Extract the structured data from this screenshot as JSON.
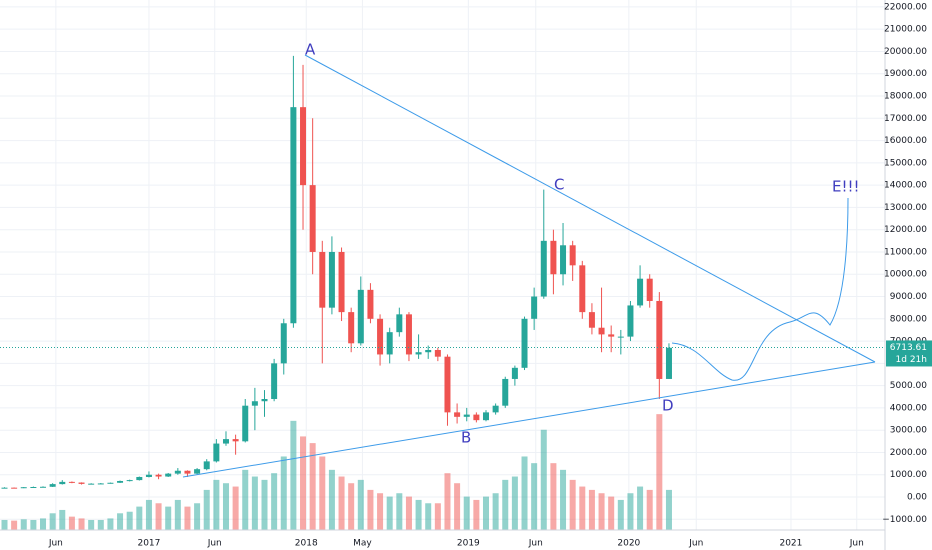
{
  "chart_data": {
    "type": "candlestick",
    "annotations": [
      "A",
      "B",
      "C",
      "D",
      "E!!!"
    ],
    "last_price": 6713.61,
    "countdown": "1d 21h",
    "up_color": "#26a69a",
    "down_color": "#ef5350",
    "grid": true,
    "xlim": [
      2016.072,
      2021.586
    ],
    "xticks": [
      {
        "value": 2016.42,
        "label": "Jun"
      },
      {
        "value": 2017.0,
        "label": "2017"
      },
      {
        "value": 2017.41,
        "label": "Jun"
      },
      {
        "value": 2017.98,
        "label": "2018"
      },
      {
        "value": 2018.33,
        "label": "May"
      },
      {
        "value": 2018.99,
        "label": "2019"
      },
      {
        "value": 2019.41,
        "label": "Jun"
      },
      {
        "value": 2019.99,
        "label": "2020"
      },
      {
        "value": 2020.41,
        "label": "Jun"
      },
      {
        "value": 2021.0,
        "label": "2021"
      },
      {
        "value": 2021.41,
        "label": "Jun"
      }
    ],
    "ylim": [
      -1480,
      22310
    ],
    "yticks": [
      {
        "value": -1000,
        "label": "−1000.00"
      },
      {
        "value": 0,
        "label": "0.00"
      },
      {
        "value": 1000,
        "label": "1000.00"
      },
      {
        "value": 2000,
        "label": "2000.00"
      },
      {
        "value": 3000,
        "label": "3000.00"
      },
      {
        "value": 4000,
        "label": "4000.00"
      },
      {
        "value": 5000,
        "label": "5000.00"
      },
      {
        "value": 6000,
        "label": "6000.00"
      },
      {
        "value": 7000,
        "label": "7000.00"
      },
      {
        "value": 8000,
        "label": "8000.00"
      },
      {
        "value": 9000,
        "label": "9000.00"
      },
      {
        "value": 10000,
        "label": "10000.00"
      },
      {
        "value": 11000,
        "label": "11000.00"
      },
      {
        "value": 12000,
        "label": "12000.00"
      },
      {
        "value": 13000,
        "label": "13000.00"
      },
      {
        "value": 14000,
        "label": "14000.00"
      },
      {
        "value": 15000,
        "label": "15000.00"
      },
      {
        "value": 16000,
        "label": "16000.00"
      },
      {
        "value": 17000,
        "label": "17000.00"
      },
      {
        "value": 18000,
        "label": "18000.00"
      },
      {
        "value": 19000,
        "label": "19000.00"
      },
      {
        "value": 20000,
        "label": "20000.00"
      },
      {
        "value": 21000,
        "label": "21000.00"
      },
      {
        "value": 22000,
        "label": "22000.00"
      }
    ],
    "x": [
      2016.1,
      2016.16,
      2016.22,
      2016.28,
      2016.34,
      2016.4,
      2016.46,
      2016.52,
      2016.58,
      2016.64,
      2016.7,
      2016.76,
      2016.82,
      2016.88,
      2016.94,
      2017.0,
      2017.06,
      2017.12,
      2017.18,
      2017.24,
      2017.3,
      2017.36,
      2017.42,
      2017.48,
      2017.54,
      2017.6,
      2017.66,
      2017.72,
      2017.78,
      2017.84,
      2017.9,
      2017.96,
      2018.02,
      2018.08,
      2018.14,
      2018.2,
      2018.26,
      2018.32,
      2018.38,
      2018.44,
      2018.5,
      2018.56,
      2018.62,
      2018.68,
      2018.74,
      2018.8,
      2018.86,
      2018.92,
      2018.98,
      2019.04,
      2019.1,
      2019.16,
      2019.22,
      2019.28,
      2019.34,
      2019.4,
      2019.46,
      2019.52,
      2019.58,
      2019.64,
      2019.7,
      2019.76,
      2019.82,
      2019.88,
      2019.94,
      2020.0,
      2020.06,
      2020.12,
      2020.18,
      2020.24
    ],
    "open": [
      400,
      420,
      410,
      440,
      450,
      460,
      580,
      680,
      650,
      590,
      600,
      610,
      640,
      720,
      760,
      900,
      1000,
      920,
      1050,
      1180,
      1050,
      1250,
      1600,
      2400,
      2600,
      2500,
      4100,
      4300,
      4400,
      6000,
      7800,
      17500,
      14000,
      11000,
      8500,
      11000,
      8300,
      6900,
      9300,
      8000,
      6400,
      7400,
      8200,
      6400,
      6500,
      6600,
      6300,
      3800,
      3600,
      3700,
      3450,
      3800,
      4100,
      5300,
      5800,
      8000,
      9000,
      11500,
      10000,
      11300,
      10400,
      8300,
      7600,
      7300,
      7200,
      7200,
      8600,
      9800,
      8800,
      5300
    ],
    "high": [
      440,
      430,
      450,
      470,
      480,
      620,
      760,
      700,
      660,
      620,
      630,
      650,
      740,
      780,
      920,
      1150,
      1050,
      1080,
      1300,
      1200,
      1300,
      1700,
      2600,
      2950,
      2800,
      4400,
      4900,
      4800,
      6200,
      8000,
      19800,
      19400,
      17000,
      11500,
      11700,
      11200,
      8500,
      9900,
      9600,
      8200,
      7600,
      8500,
      8300,
      7300,
      6800,
      6700,
      6400,
      4200,
      4000,
      3800,
      3900,
      4200,
      5400,
      5900,
      8100,
      9400,
      13800,
      12000,
      12300,
      11500,
      10600,
      8700,
      9400,
      7700,
      7500,
      8800,
      10400,
      10000,
      9200,
      6900
    ],
    "low": [
      390,
      395,
      400,
      430,
      440,
      450,
      560,
      620,
      560,
      570,
      590,
      600,
      630,
      700,
      740,
      880,
      800,
      900,
      1000,
      900,
      1020,
      1200,
      1550,
      2300,
      1900,
      2450,
      3000,
      3600,
      4300,
      5500,
      7600,
      12000,
      10000,
      6000,
      8200,
      7900,
      6500,
      6800,
      7800,
      5900,
      6000,
      7200,
      6100,
      6200,
      6200,
      6100,
      3200,
      3300,
      3400,
      3350,
      3400,
      3700,
      4000,
      5000,
      5700,
      7500,
      8900,
      9100,
      9500,
      9700,
      8000,
      7300,
      6500,
      6500,
      6400,
      7000,
      8500,
      8500,
      4400,
      5300
    ],
    "close": [
      420,
      410,
      440,
      450,
      460,
      580,
      680,
      650,
      590,
      600,
      610,
      640,
      720,
      760,
      900,
      1000,
      920,
      1050,
      1180,
      1050,
      1250,
      1600,
      2400,
      2600,
      2500,
      4100,
      4300,
      4400,
      6000,
      7800,
      17500,
      14000,
      11000,
      8500,
      11000,
      8300,
      6900,
      9300,
      8000,
      6400,
      7400,
      8200,
      6400,
      6500,
      6600,
      6300,
      3800,
      3600,
      3700,
      3450,
      3800,
      4100,
      5300,
      5800,
      8000,
      9000,
      11500,
      10000,
      11300,
      10400,
      8300,
      7600,
      7300,
      7200,
      7200,
      8600,
      9800,
      8800,
      5300,
      6700
    ],
    "volume": [
      450,
      420,
      480,
      450,
      520,
      750,
      900,
      600,
      520,
      450,
      450,
      520,
      750,
      820,
      1050,
      1350,
      1200,
      1050,
      1350,
      1050,
      1200,
      1800,
      2250,
      2100,
      1950,
      2700,
      2400,
      2250,
      2550,
      3300,
      4900,
      4200,
      3900,
      3300,
      2700,
      2400,
      2100,
      2250,
      1800,
      1650,
      1500,
      1650,
      1500,
      1350,
      1200,
      1200,
      2550,
      2100,
      1500,
      1350,
      1500,
      1650,
      2250,
      2400,
      3300,
      3000,
      4500,
      3000,
      2700,
      2250,
      1950,
      1800,
      1650,
      1500,
      1350,
      1650,
      1950,
      1800,
      5200,
      1800
    ]
  }
}
